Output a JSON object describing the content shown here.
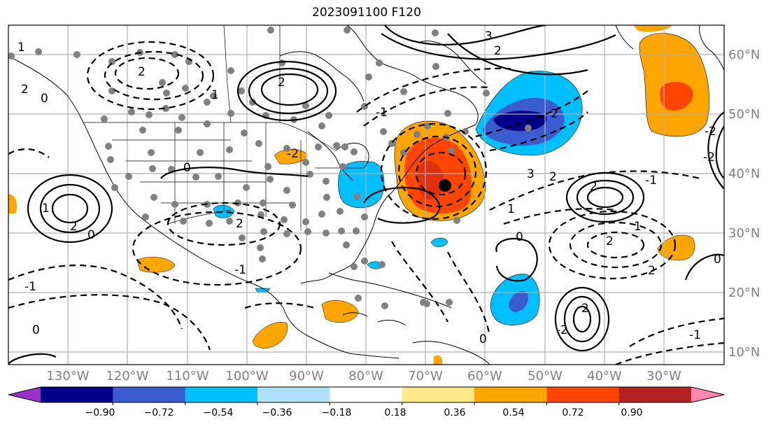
{
  "title": "2023091100 F120",
  "lat_labels": [
    "60°N",
    "50°N",
    "40°N",
    "30°N",
    "20°N",
    "10°N"
  ],
  "lon_labels": [
    "130°W",
    "120°W",
    "110°W",
    "100°W",
    "90°W",
    "80°W",
    "70°W",
    "60°W",
    "50°W",
    "40°W",
    "30°W"
  ],
  "colorbar": {
    "colors": [
      "#9932cc",
      "#00008b",
      "#3b5bd0",
      "#00bfff",
      "#afe2fa",
      "#ffffff",
      "#ffe88a",
      "#ffa500",
      "#ff4500",
      "#b22222",
      "#ff88b0"
    ],
    "ticks": [
      "−0.90",
      "−0.72",
      "−0.54",
      "−0.36",
      "−0.18",
      "0.18",
      "0.36",
      "0.54",
      "0.72",
      "0.90"
    ]
  },
  "contour_labels": [
    "3",
    "2",
    "2",
    "2",
    "2",
    "0",
    "0",
    "1",
    "2",
    "0",
    "-1",
    "-1",
    "3",
    "2",
    "2",
    "2",
    "2",
    "2",
    "1",
    "1",
    "0",
    "0",
    "2",
    "-2",
    "-1",
    "0",
    "0",
    "-2",
    "-1",
    "-2",
    "1",
    "1",
    "2",
    "-1",
    "-2"
  ],
  "legend": {
    "storm_marker": "black dot"
  },
  "colors": {
    "grid": "#b0b0b0",
    "coast": "#000000",
    "station_dots": "#808080"
  }
}
